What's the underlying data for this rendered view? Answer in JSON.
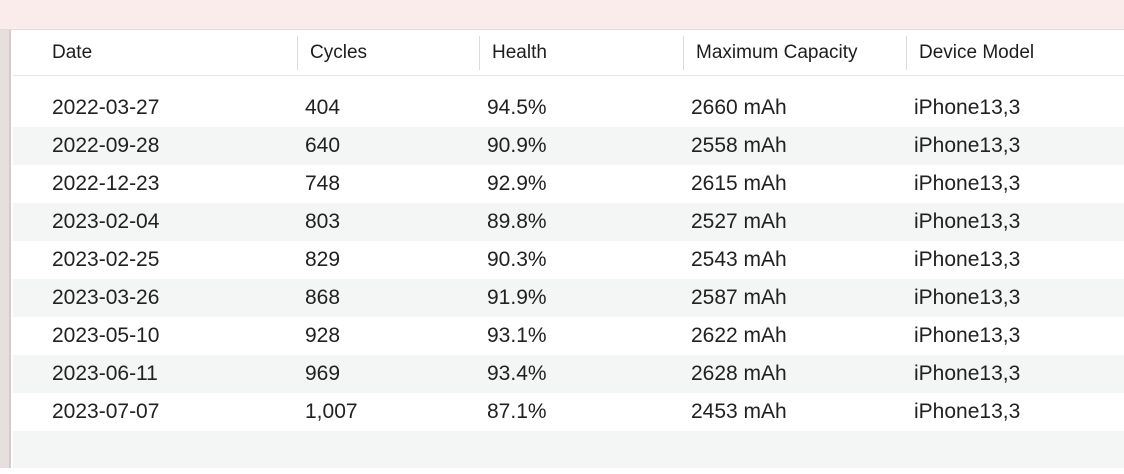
{
  "window": {
    "titlebar_color": "#f9eceb",
    "left_strip_color": "#e6dfde",
    "alt_row_color": "#f4f5f5"
  },
  "table": {
    "columns": [
      {
        "key": "date",
        "label": "Date"
      },
      {
        "key": "cycles",
        "label": "Cycles"
      },
      {
        "key": "health",
        "label": "Health"
      },
      {
        "key": "capacity",
        "label": "Maximum Capacity"
      },
      {
        "key": "model",
        "label": "Device Model"
      }
    ],
    "rows": [
      [
        "2022-03-27",
        "404",
        "94.5%",
        "2660 mAh",
        "iPhone13,3"
      ],
      [
        "2022-09-28",
        "640",
        "90.9%",
        "2558 mAh",
        "iPhone13,3"
      ],
      [
        "2022-12-23",
        "748",
        "92.9%",
        "2615 mAh",
        "iPhone13,3"
      ],
      [
        "2023-02-04",
        "803",
        "89.8%",
        "2527 mAh",
        "iPhone13,3"
      ],
      [
        "2023-02-25",
        "829",
        "90.3%",
        "2543 mAh",
        "iPhone13,3"
      ],
      [
        "2023-03-26",
        "868",
        "91.9%",
        "2587 mAh",
        "iPhone13,3"
      ],
      [
        "2023-05-10",
        "928",
        "93.1%",
        "2622 mAh",
        "iPhone13,3"
      ],
      [
        "2023-06-11",
        "969",
        "93.4%",
        "2628 mAh",
        "iPhone13,3"
      ],
      [
        "2023-07-07",
        "1,007",
        "87.1%",
        "2453 mAh",
        "iPhone13,3"
      ]
    ]
  }
}
